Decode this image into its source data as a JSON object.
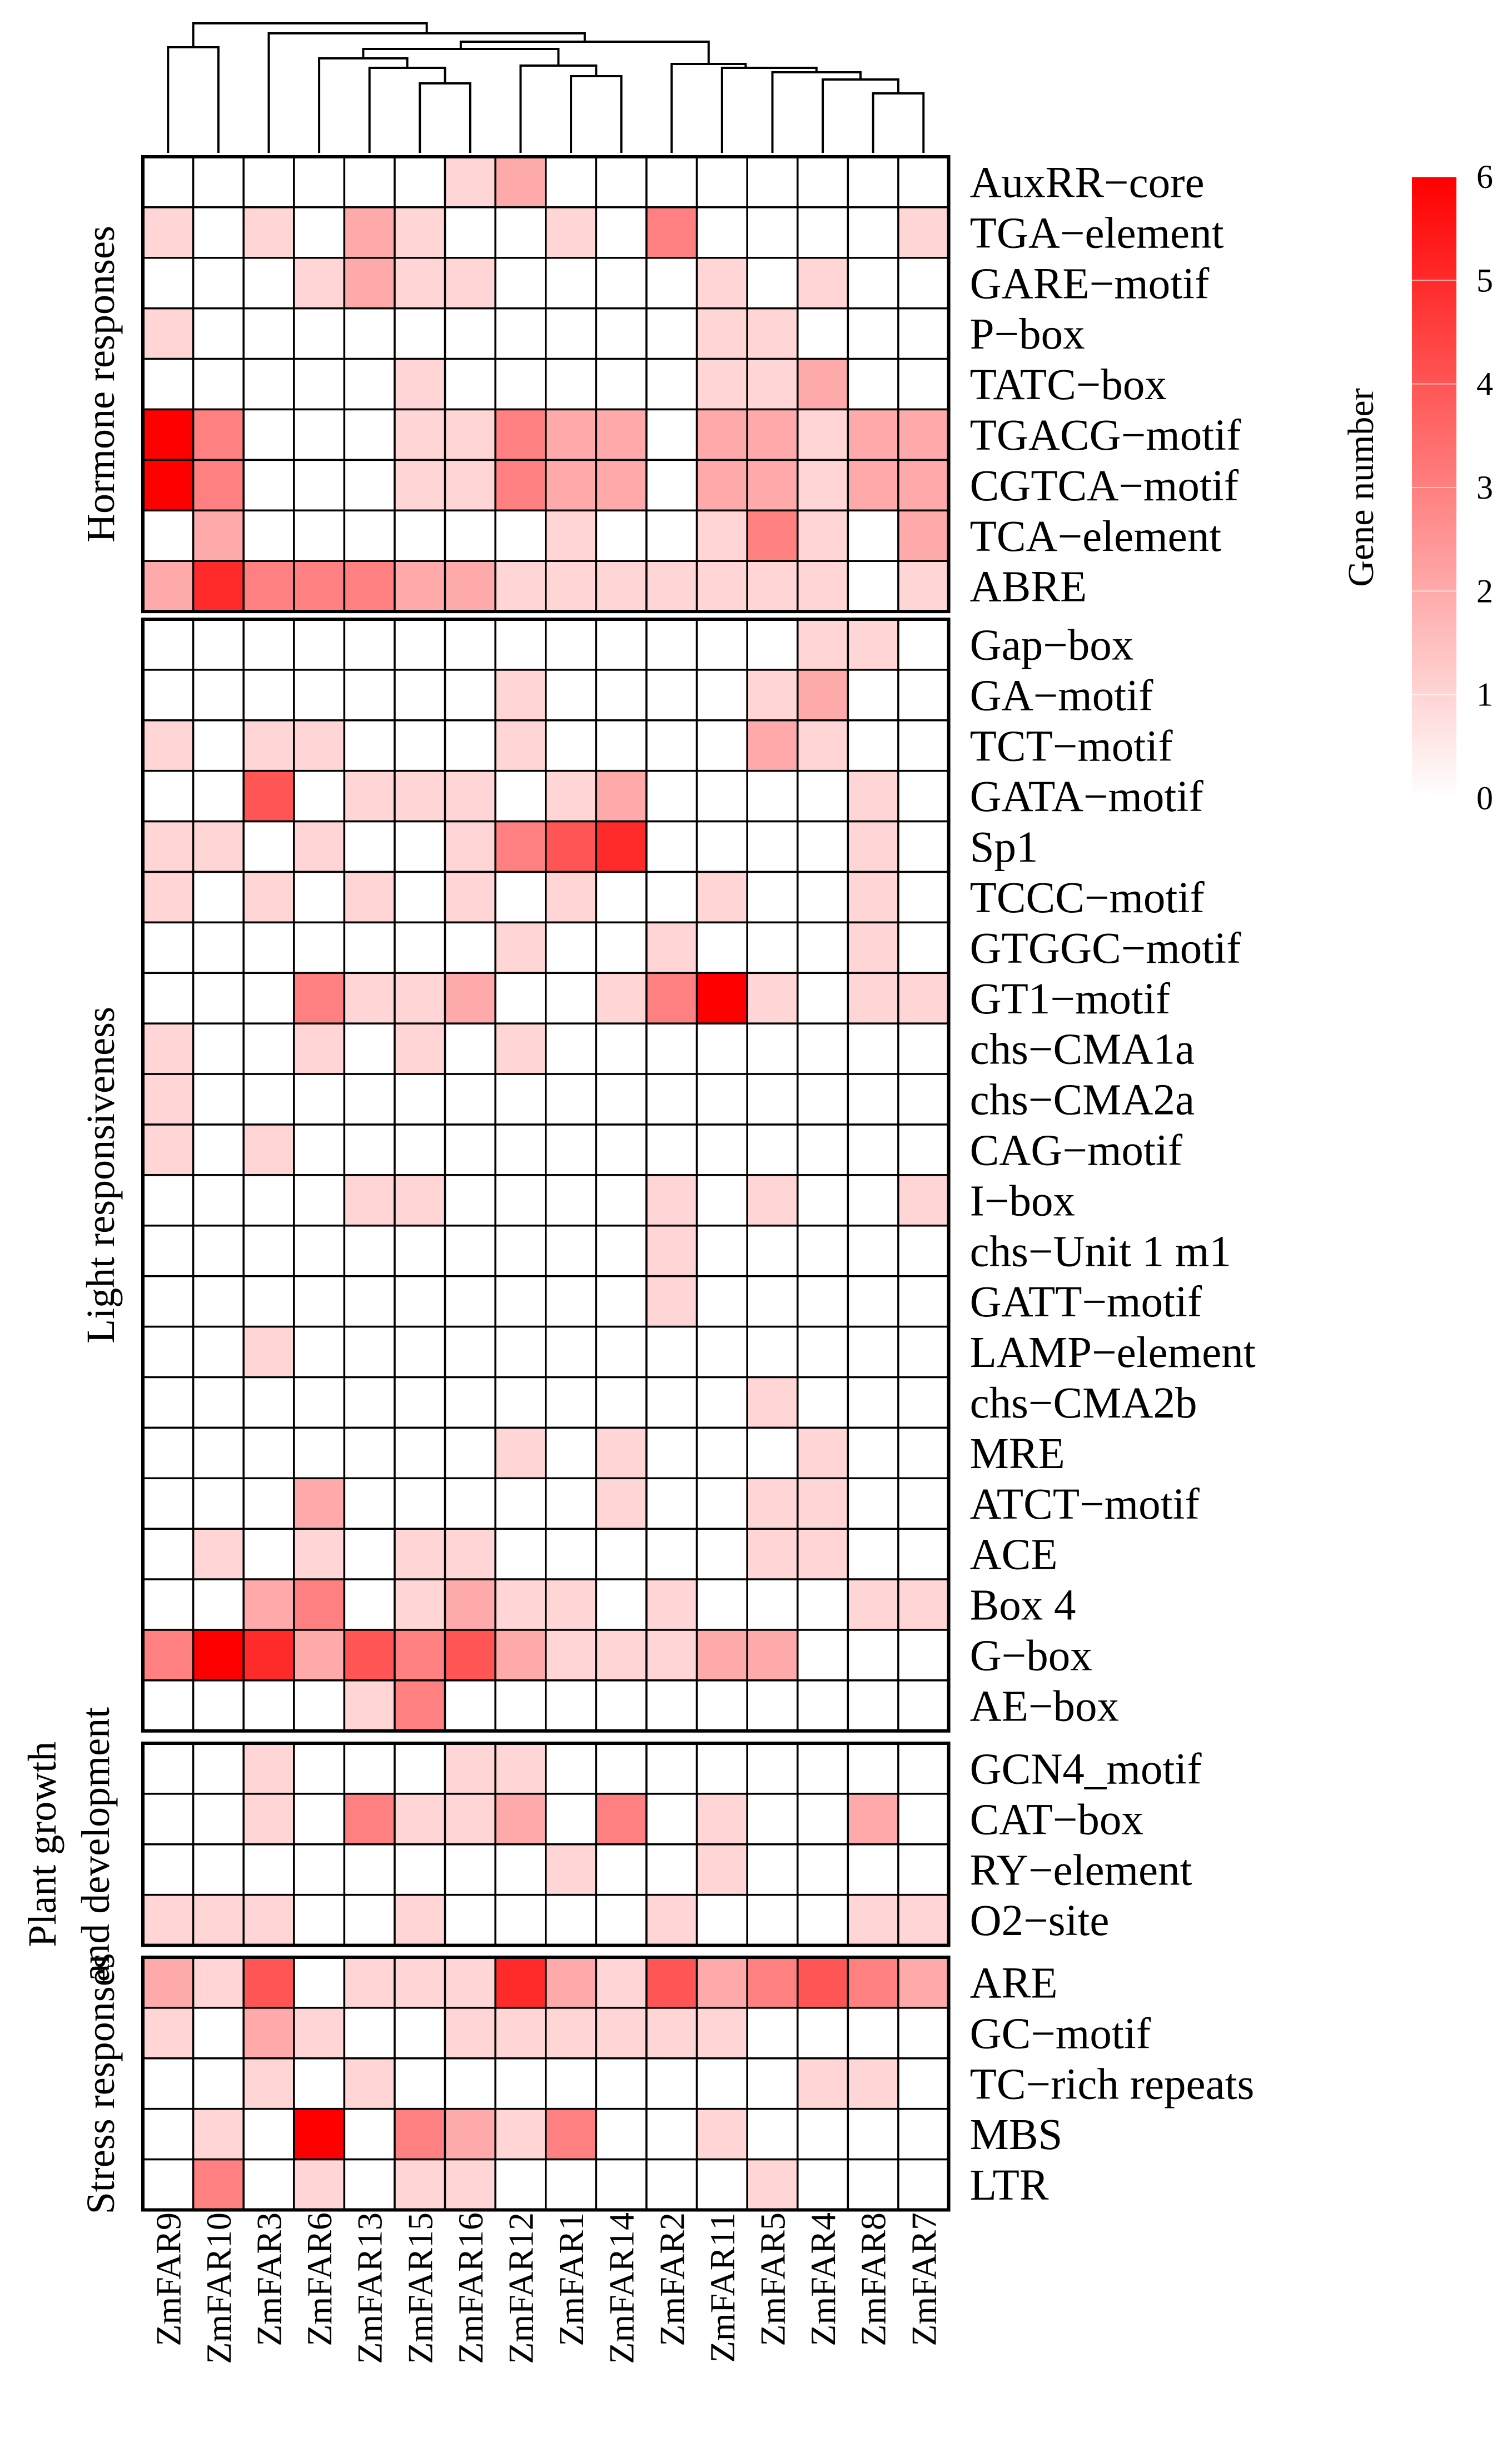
{
  "chart_data": {
    "type": "heatmap",
    "title": "",
    "xlabel": "",
    "ylabel": "",
    "columns": [
      "ZmFAR9",
      "ZmFAR10",
      "ZmFAR3",
      "ZmFAR6",
      "ZmFAR13",
      "ZmFAR15",
      "ZmFAR16",
      "ZmFAR12",
      "ZmFAR1",
      "ZmFAR14",
      "ZmFAR2",
      "ZmFAR11",
      "ZmFAR5",
      "ZmFAR4",
      "ZmFAR8",
      "ZmFAR7"
    ],
    "groups": [
      {
        "name": "Hormone responses",
        "rows": [
          {
            "label": "AuxRR−core",
            "values": [
              0,
              0,
              0,
              0,
              0,
              0,
              1,
              2,
              0,
              0,
              0,
              0,
              0,
              0,
              0,
              0
            ]
          },
          {
            "label": "TGA−element",
            "values": [
              1,
              0,
              1,
              0,
              2,
              1,
              0,
              0,
              1,
              0,
              3,
              0,
              0,
              0,
              0,
              1
            ]
          },
          {
            "label": "GARE−motif",
            "values": [
              0,
              0,
              0,
              1,
              2,
              1,
              1,
              0,
              0,
              0,
              0,
              1,
              0,
              1,
              0,
              0
            ]
          },
          {
            "label": "P−box",
            "values": [
              1,
              0,
              0,
              0,
              0,
              0,
              0,
              0,
              0,
              0,
              0,
              1,
              1,
              0,
              0,
              0
            ]
          },
          {
            "label": "TATC−box",
            "values": [
              0,
              0,
              0,
              0,
              0,
              1,
              0,
              0,
              0,
              0,
              0,
              1,
              1,
              2,
              0,
              0
            ]
          },
          {
            "label": "TGACG−motif",
            "values": [
              6,
              3,
              0,
              0,
              0,
              1,
              1,
              3,
              2,
              2,
              0,
              2,
              2,
              1,
              2,
              2
            ]
          },
          {
            "label": "CGTCA−motif",
            "values": [
              6,
              3,
              0,
              0,
              0,
              1,
              1,
              3,
              2,
              2,
              0,
              2,
              2,
              1,
              2,
              2
            ]
          },
          {
            "label": "TCA−element",
            "values": [
              0,
              2,
              0,
              0,
              0,
              0,
              0,
              0,
              1,
              0,
              0,
              1,
              3,
              1,
              0,
              2
            ]
          },
          {
            "label": "ABRE",
            "values": [
              2,
              5,
              3,
              3,
              3,
              2,
              2,
              1,
              1,
              1,
              1,
              1,
              1,
              1,
              0,
              1
            ]
          }
        ]
      },
      {
        "name": "Light responsiveness",
        "rows": [
          {
            "label": "Gap−box",
            "values": [
              0,
              0,
              0,
              0,
              0,
              0,
              0,
              0,
              0,
              0,
              0,
              0,
              0,
              1,
              1,
              0
            ]
          },
          {
            "label": "GA−motif",
            "values": [
              0,
              0,
              0,
              0,
              0,
              0,
              0,
              1,
              0,
              0,
              0,
              0,
              1,
              2,
              0,
              0
            ]
          },
          {
            "label": "TCT−motif",
            "values": [
              1,
              0,
              1,
              1,
              0,
              0,
              0,
              1,
              0,
              0,
              0,
              0,
              2,
              1,
              0,
              0
            ]
          },
          {
            "label": "GATA−motif",
            "values": [
              0,
              0,
              4,
              0,
              1,
              1,
              1,
              0,
              1,
              2,
              0,
              0,
              0,
              0,
              1,
              0
            ]
          },
          {
            "label": "Sp1",
            "values": [
              1,
              1,
              0,
              1,
              0,
              0,
              1,
              3,
              4,
              5,
              0,
              0,
              0,
              0,
              1,
              0
            ]
          },
          {
            "label": "TCCC−motif",
            "values": [
              1,
              0,
              1,
              0,
              1,
              0,
              1,
              0,
              1,
              0,
              0,
              1,
              0,
              0,
              1,
              0
            ]
          },
          {
            "label": "GTGGC−motif",
            "values": [
              0,
              0,
              0,
              0,
              0,
              0,
              0,
              1,
              0,
              0,
              1,
              0,
              0,
              0,
              1,
              0
            ]
          },
          {
            "label": "GT1−motif",
            "values": [
              0,
              0,
              0,
              3,
              1,
              1,
              2,
              0,
              0,
              1,
              3,
              6,
              1,
              0,
              1,
              1
            ]
          },
          {
            "label": "chs−CMA1a",
            "values": [
              1,
              0,
              0,
              1,
              0,
              1,
              0,
              1,
              0,
              0,
              0,
              0,
              0,
              0,
              0,
              0
            ]
          },
          {
            "label": "chs−CMA2a",
            "values": [
              1,
              0,
              0,
              0,
              0,
              0,
              0,
              0,
              0,
              0,
              0,
              0,
              0,
              0,
              0,
              0
            ]
          },
          {
            "label": "CAG−motif",
            "values": [
              1,
              0,
              1,
              0,
              0,
              0,
              0,
              0,
              0,
              0,
              0,
              0,
              0,
              0,
              0,
              0
            ]
          },
          {
            "label": "I−box",
            "values": [
              0,
              0,
              0,
              0,
              1,
              1,
              0,
              0,
              0,
              0,
              1,
              0,
              1,
              0,
              0,
              1
            ]
          },
          {
            "label": "chs−Unit 1 m1",
            "values": [
              0,
              0,
              0,
              0,
              0,
              0,
              0,
              0,
              0,
              0,
              1,
              0,
              0,
              0,
              0,
              0
            ]
          },
          {
            "label": "GATT−motif",
            "values": [
              0,
              0,
              0,
              0,
              0,
              0,
              0,
              0,
              0,
              0,
              1,
              0,
              0,
              0,
              0,
              0
            ]
          },
          {
            "label": "LAMP−element",
            "values": [
              0,
              0,
              1,
              0,
              0,
              0,
              0,
              0,
              0,
              0,
              0,
              0,
              0,
              0,
              0,
              0
            ]
          },
          {
            "label": "chs−CMA2b",
            "values": [
              0,
              0,
              0,
              0,
              0,
              0,
              0,
              0,
              0,
              0,
              0,
              0,
              1,
              0,
              0,
              0
            ]
          },
          {
            "label": "MRE",
            "values": [
              0,
              0,
              0,
              0,
              0,
              0,
              0,
              1,
              0,
              1,
              0,
              0,
              0,
              1,
              0,
              0
            ]
          },
          {
            "label": "ATCT−motif",
            "values": [
              0,
              0,
              0,
              2,
              0,
              0,
              0,
              0,
              0,
              1,
              0,
              0,
              1,
              1,
              0,
              0
            ]
          },
          {
            "label": "ACE",
            "values": [
              0,
              1,
              0,
              1,
              0,
              1,
              1,
              0,
              0,
              0,
              0,
              0,
              1,
              1,
              0,
              0
            ]
          },
          {
            "label": "Box 4",
            "values": [
              0,
              0,
              2,
              3,
              0,
              1,
              2,
              1,
              1,
              0,
              1,
              0,
              0,
              0,
              1,
              1
            ]
          },
          {
            "label": "G−box",
            "values": [
              3,
              6,
              5,
              2,
              4,
              3,
              4,
              2,
              1,
              1,
              1,
              2,
              2,
              0,
              0,
              0
            ]
          },
          {
            "label": "AE−box",
            "values": [
              0,
              0,
              0,
              0,
              1,
              3,
              0,
              0,
              0,
              0,
              0,
              0,
              0,
              0,
              0,
              0
            ]
          }
        ]
      },
      {
        "name": "Plant growth and development",
        "rows": [
          {
            "label": "GCN4_motif",
            "values": [
              0,
              0,
              1,
              0,
              0,
              0,
              1,
              1,
              0,
              0,
              0,
              0,
              0,
              0,
              0,
              0
            ]
          },
          {
            "label": "CAT−box",
            "values": [
              0,
              0,
              1,
              0,
              3,
              1,
              1,
              2,
              0,
              3,
              0,
              1,
              0,
              0,
              2,
              0
            ]
          },
          {
            "label": "RY−element",
            "values": [
              0,
              0,
              0,
              0,
              0,
              0,
              0,
              0,
              1,
              0,
              0,
              1,
              0,
              0,
              0,
              0
            ]
          },
          {
            "label": "O2−site",
            "values": [
              1,
              1,
              1,
              0,
              0,
              1,
              0,
              0,
              0,
              0,
              1,
              0,
              0,
              0,
              1,
              1
            ]
          }
        ]
      },
      {
        "name": "Stress responses",
        "rows": [
          {
            "label": "ARE",
            "values": [
              2,
              1,
              4,
              0,
              1,
              1,
              1,
              5,
              2,
              1,
              4,
              2,
              3,
              4,
              3,
              2
            ]
          },
          {
            "label": "GC−motif",
            "values": [
              1,
              0,
              2,
              1,
              0,
              0,
              1,
              1,
              1,
              1,
              1,
              1,
              0,
              0,
              0,
              0
            ]
          },
          {
            "label": "TC−rich repeats",
            "values": [
              0,
              0,
              1,
              0,
              1,
              0,
              0,
              0,
              0,
              0,
              0,
              0,
              0,
              1,
              1,
              0
            ]
          },
          {
            "label": "MBS",
            "values": [
              0,
              1,
              0,
              6,
              0,
              3,
              2,
              1,
              3,
              0,
              0,
              1,
              0,
              0,
              0,
              0
            ]
          },
          {
            "label": "LTR",
            "values": [
              0,
              3,
              0,
              1,
              0,
              1,
              1,
              0,
              0,
              0,
              0,
              0,
              1,
              0,
              0,
              0
            ]
          }
        ]
      }
    ],
    "color_scale": {
      "min": 0,
      "max": 6,
      "low_color": "#ffffff",
      "high_color": "#ff0000",
      "title": "Gene number",
      "ticks": [
        0,
        1,
        2,
        3,
        4,
        5,
        6
      ]
    },
    "dendrogram": "column clustering tree drawn above the heatmap",
    "grid": true,
    "legend_position": "top-right"
  }
}
